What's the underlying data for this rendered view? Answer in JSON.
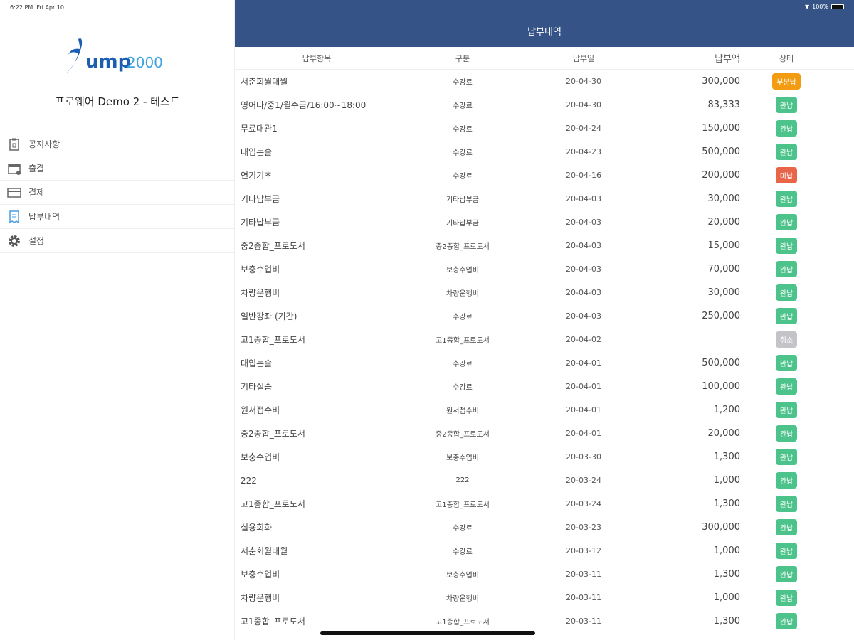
{
  "status_bar": {
    "time": "6:22 PM",
    "date": "Fri Apr 10",
    "battery": "100%"
  },
  "sidebar": {
    "logo_text": "Jump2000",
    "org_name": "프로웨어 Demo 2 - 테스트",
    "items": [
      {
        "label": "공지사항",
        "icon": "clipboard-icon"
      },
      {
        "label": "출결",
        "icon": "calendar-icon"
      },
      {
        "label": "결제",
        "icon": "credit-card-icon"
      },
      {
        "label": "납부내역",
        "icon": "receipt-icon",
        "active": true
      },
      {
        "label": "설정",
        "icon": "gear-icon"
      }
    ]
  },
  "header": {
    "title": "납부내역",
    "color": "#355386"
  },
  "table": {
    "columns": [
      "납부항목",
      "구분",
      "납부일",
      "납부액",
      "상태"
    ],
    "status_colors": {
      "부분납": "#f39c12",
      "완납": "#4cc38a",
      "미납": "#e8654a",
      "취소": "#c4c4c8"
    },
    "rows": [
      [
        "서춘회월대월",
        "수강료",
        "20-04-30",
        "300,000",
        "부분납"
      ],
      [
        "영어나/중1/월수금/16:00~18:00",
        "수강료",
        "20-04-30",
        "83,333",
        "완납"
      ],
      [
        "무료대관1",
        "수강료",
        "20-04-24",
        "150,000",
        "완납"
      ],
      [
        "대입논술",
        "수강료",
        "20-04-23",
        "500,000",
        "완납"
      ],
      [
        "연기기초",
        "수강료",
        "20-04-16",
        "200,000",
        "미납"
      ],
      [
        "기타납부금",
        "기타납부금",
        "20-04-03",
        "30,000",
        "완납"
      ],
      [
        "기타납부금",
        "기타납부금",
        "20-04-03",
        "20,000",
        "완납"
      ],
      [
        "중2종합_프로도서",
        "중2종합_프로도서",
        "20-04-03",
        "15,000",
        "완납"
      ],
      [
        "보충수업비",
        "보충수업비",
        "20-04-03",
        "70,000",
        "완납"
      ],
      [
        "차량운행비",
        "차량운행비",
        "20-04-03",
        "30,000",
        "완납"
      ],
      [
        "일반강좌 (기간)",
        "수강료",
        "20-04-03",
        "250,000",
        "완납"
      ],
      [
        "고1종합_프로도서",
        "고1종합_프로도서",
        "20-04-02",
        "",
        "취소"
      ],
      [
        "대입논술",
        "수강료",
        "20-04-01",
        "500,000",
        "완납"
      ],
      [
        "기타실습",
        "수강료",
        "20-04-01",
        "100,000",
        "완납"
      ],
      [
        "원서접수비",
        "원서접수비",
        "20-04-01",
        "1,200",
        "완납"
      ],
      [
        "중2종합_프로도서",
        "중2종합_프로도서",
        "20-04-01",
        "20,000",
        "완납"
      ],
      [
        "보충수업비",
        "보충수업비",
        "20-03-30",
        "1,300",
        "완납"
      ],
      [
        "222",
        "222",
        "20-03-24",
        "1,000",
        "완납"
      ],
      [
        "고1종합_프로도서",
        "고1종합_프로도서",
        "20-03-24",
        "1,300",
        "완납"
      ],
      [
        "실용회화",
        "수강료",
        "20-03-23",
        "300,000",
        "완납"
      ],
      [
        "서춘회월대월",
        "수강료",
        "20-03-12",
        "1,000",
        "완납"
      ],
      [
        "보충수업비",
        "보충수업비",
        "20-03-11",
        "1,300",
        "완납"
      ],
      [
        "차량운행비",
        "차량운행비",
        "20-03-11",
        "1,000",
        "완납"
      ],
      [
        "고1종합_프로도서",
        "고1종합_프로도서",
        "20-03-11",
        "1,300",
        "완납"
      ]
    ]
  }
}
